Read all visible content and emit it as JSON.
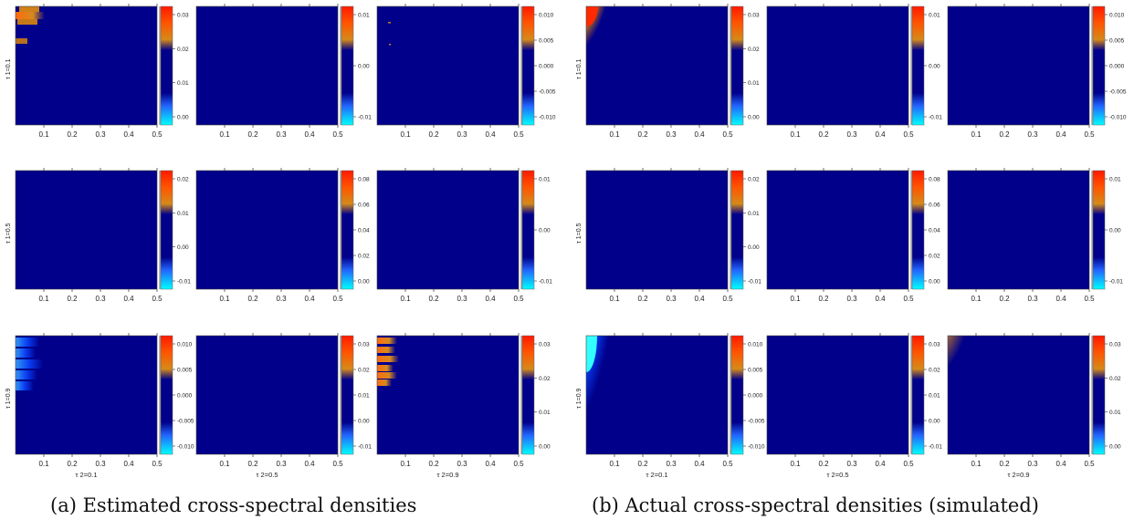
{
  "figure": {
    "captions": [
      "(a) Estimated cross-spectral densities",
      "(b) Actual cross-spectral densities (simulated)"
    ],
    "row_labels": [
      "τ 1=0.1",
      "τ 1=0.5",
      "τ 1=0.9"
    ],
    "col_labels": [
      "τ 2=0.1",
      "τ 2=0.5",
      "τ 2=0.9"
    ],
    "x_ticks": [
      "0.1",
      "0.2",
      "0.3",
      "0.4",
      "0.5"
    ]
  },
  "colors": {
    "background": "#00008b",
    "hot": "#ff2200",
    "warm": "#e08a1e",
    "cool": "#0a44ff",
    "cyan": "#00ffff"
  },
  "chart_data": [
    {
      "panel": "a",
      "type": "heatmap",
      "title": "(a) Estimated cross-spectral densities",
      "xlim": [
        0,
        0.5
      ],
      "cells": [
        {
          "row": 0,
          "col": 0,
          "pattern": "warm-spots-left",
          "colorbar_ticks": [
            "0.03",
            "0.02",
            "0.01",
            "0.00"
          ]
        },
        {
          "row": 0,
          "col": 1,
          "pattern": "flat",
          "colorbar_ticks": [
            "0.01",
            "0.00",
            "-0.01"
          ]
        },
        {
          "row": 0,
          "col": 2,
          "pattern": "flat-specks",
          "colorbar_ticks": [
            "0.010",
            "0.005",
            "0.000",
            "-0.005",
            "-0.010"
          ]
        },
        {
          "row": 1,
          "col": 0,
          "pattern": "flat",
          "colorbar_ticks": [
            "0.02",
            "0.01",
            "0.00",
            "-0.01"
          ]
        },
        {
          "row": 1,
          "col": 1,
          "pattern": "flat",
          "colorbar_ticks": [
            "0.08",
            "0.06",
            "0.04",
            "0.02",
            "0.00"
          ]
        },
        {
          "row": 1,
          "col": 2,
          "pattern": "flat",
          "colorbar_ticks": [
            "0.01",
            "0.00",
            "-0.01"
          ]
        },
        {
          "row": 2,
          "col": 0,
          "pattern": "cool-left-band",
          "colorbar_ticks": [
            "0.010",
            "0.005",
            "0.000",
            "-0.005",
            "-0.010"
          ]
        },
        {
          "row": 2,
          "col": 1,
          "pattern": "flat",
          "colorbar_ticks": [
            "0.03",
            "0.02",
            "0.01",
            "0.00",
            "-0.01"
          ]
        },
        {
          "row": 2,
          "col": 2,
          "pattern": "warm-left-band",
          "colorbar_ticks": [
            "0.03",
            "0.02",
            "0.01",
            "0.00"
          ]
        }
      ]
    },
    {
      "panel": "b",
      "type": "heatmap",
      "title": "(b) Actual cross-spectral densities (simulated)",
      "xlim": [
        0,
        0.5
      ],
      "cells": [
        {
          "row": 0,
          "col": 0,
          "pattern": "hot-corner",
          "colorbar_ticks": [
            "0.03",
            "0.02",
            "0.01",
            "0.00"
          ]
        },
        {
          "row": 0,
          "col": 1,
          "pattern": "flat",
          "colorbar_ticks": [
            "0.01",
            "0.00",
            "-0.01"
          ]
        },
        {
          "row": 0,
          "col": 2,
          "pattern": "flat",
          "colorbar_ticks": [
            "0.010",
            "0.005",
            "0.000",
            "-0.005",
            "-0.010"
          ]
        },
        {
          "row": 1,
          "col": 0,
          "pattern": "flat",
          "colorbar_ticks": [
            "0.02",
            "0.01",
            "0.00",
            "-0.01"
          ]
        },
        {
          "row": 1,
          "col": 1,
          "pattern": "flat",
          "colorbar_ticks": [
            "0.08",
            "0.06",
            "0.04",
            "0.02",
            "0.00"
          ]
        },
        {
          "row": 1,
          "col": 2,
          "pattern": "flat",
          "colorbar_ticks": [
            "0.01",
            "0.00",
            "-0.01"
          ]
        },
        {
          "row": 2,
          "col": 0,
          "pattern": "cyan-corner",
          "colorbar_ticks": [
            "0.010",
            "0.005",
            "0.000",
            "-0.005",
            "-0.010"
          ]
        },
        {
          "row": 2,
          "col": 1,
          "pattern": "flat",
          "colorbar_ticks": [
            "0.03",
            "0.02",
            "0.01",
            "0.00",
            "-0.01"
          ]
        },
        {
          "row": 2,
          "col": 2,
          "pattern": "warm-corner",
          "colorbar_ticks": [
            "0.03",
            "0.02",
            "0.01",
            "0.00"
          ]
        }
      ]
    }
  ]
}
